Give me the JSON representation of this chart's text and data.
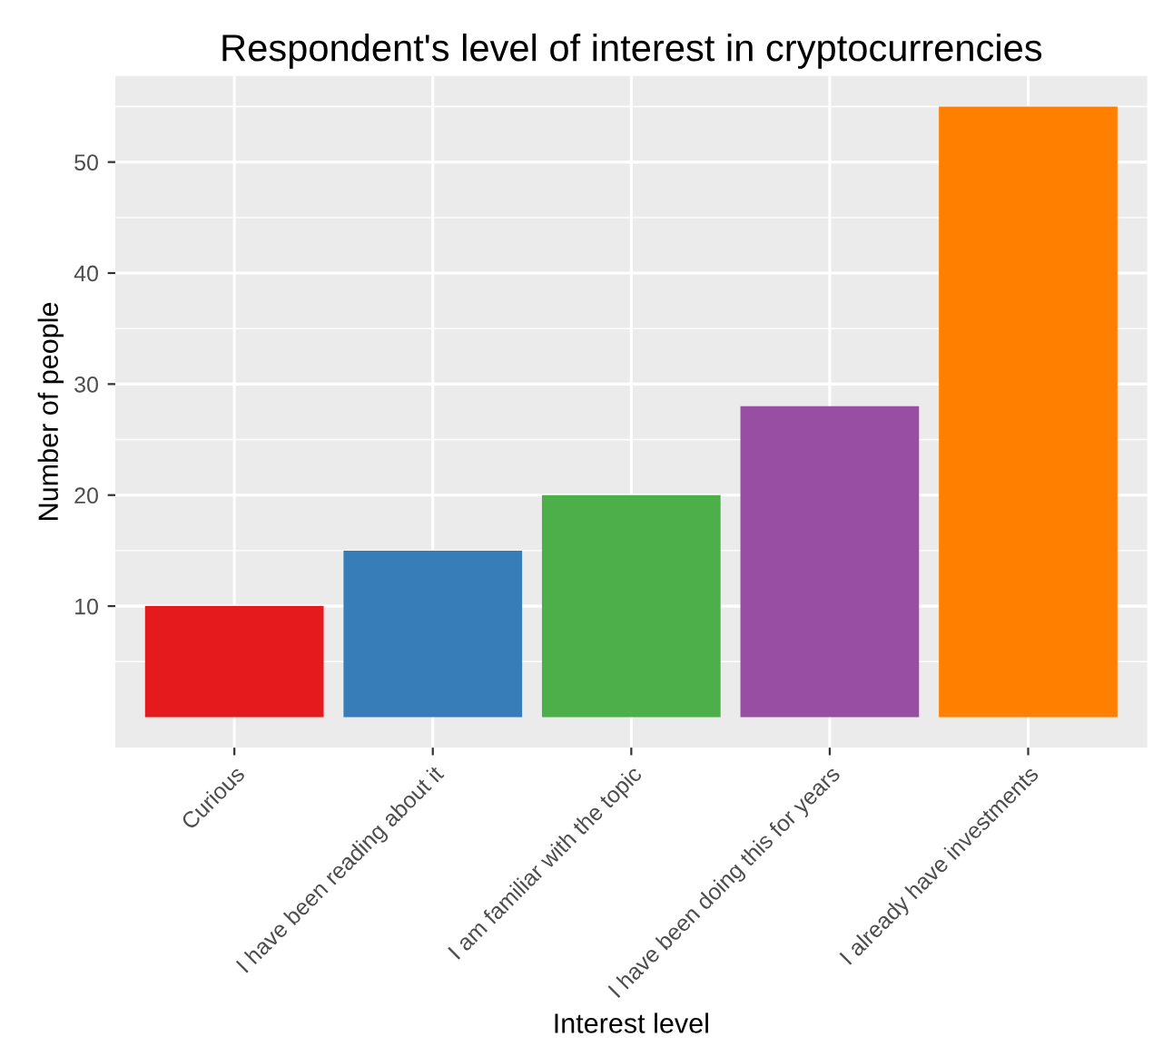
{
  "chart_data": {
    "type": "bar",
    "title": "Respondent's level of interest in cryptocurrencies",
    "xlabel": "Interest level",
    "ylabel": "Number of people",
    "categories": [
      "Curious",
      "I have been reading about it",
      "I am familiar with the topic",
      "I have been doing this for years",
      "I already have investments"
    ],
    "values": [
      10,
      15,
      20,
      28,
      55
    ],
    "colors": [
      "#e41a1c",
      "#377eb8",
      "#4daf4a",
      "#984ea3",
      "#ff7f00"
    ],
    "ylim": [
      -2.75,
      57.75
    ],
    "yticks": [
      10,
      20,
      30,
      40,
      50
    ],
    "grid": true
  }
}
